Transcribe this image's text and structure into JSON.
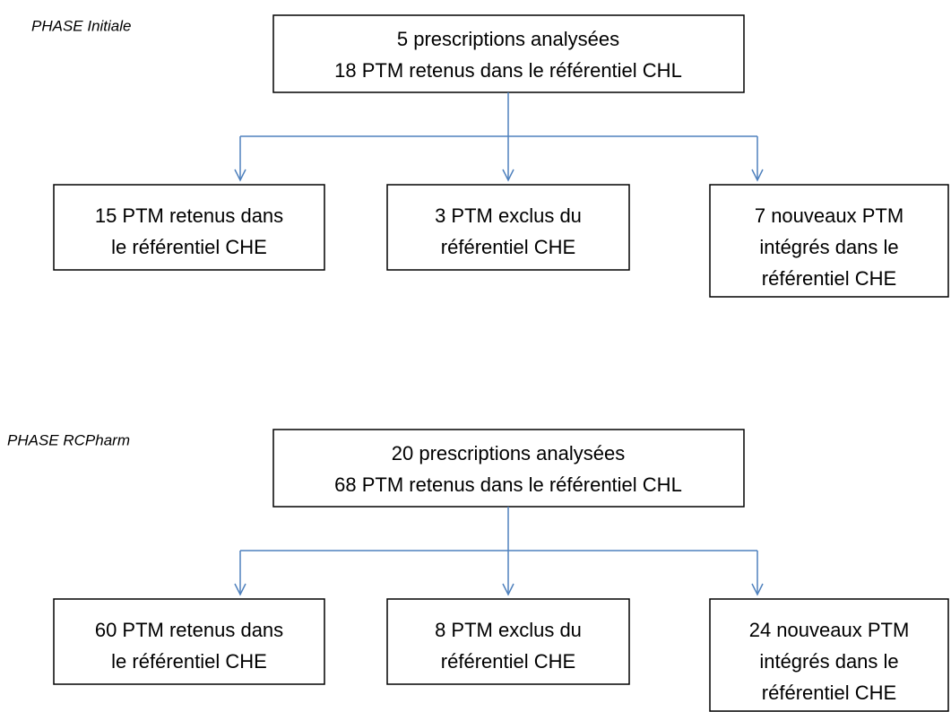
{
  "phases": [
    {
      "label": "PHASE Initiale",
      "summary": [
        "5 prescriptions analysées",
        "18 PTM retenus dans le référentiel CHL"
      ],
      "outcomes": [
        [
          "15 PTM retenus dans",
          "le référentiel CHE"
        ],
        [
          "3 PTM exclus du",
          "référentiel CHE"
        ],
        [
          "7 nouveaux PTM",
          "intégrés dans le",
          "référentiel CHE"
        ]
      ]
    },
    {
      "label": "PHASE RCPharm",
      "summary": [
        "20 prescriptions analysées",
        "68 PTM retenus dans le référentiel CHL"
      ],
      "outcomes": [
        [
          "60 PTM retenus dans",
          "le référentiel CHE"
        ],
        [
          "8 PTM exclus du",
          "référentiel CHE"
        ],
        [
          "24 nouveaux PTM",
          "intégrés dans le",
          "référentiel CHE"
        ]
      ]
    }
  ]
}
